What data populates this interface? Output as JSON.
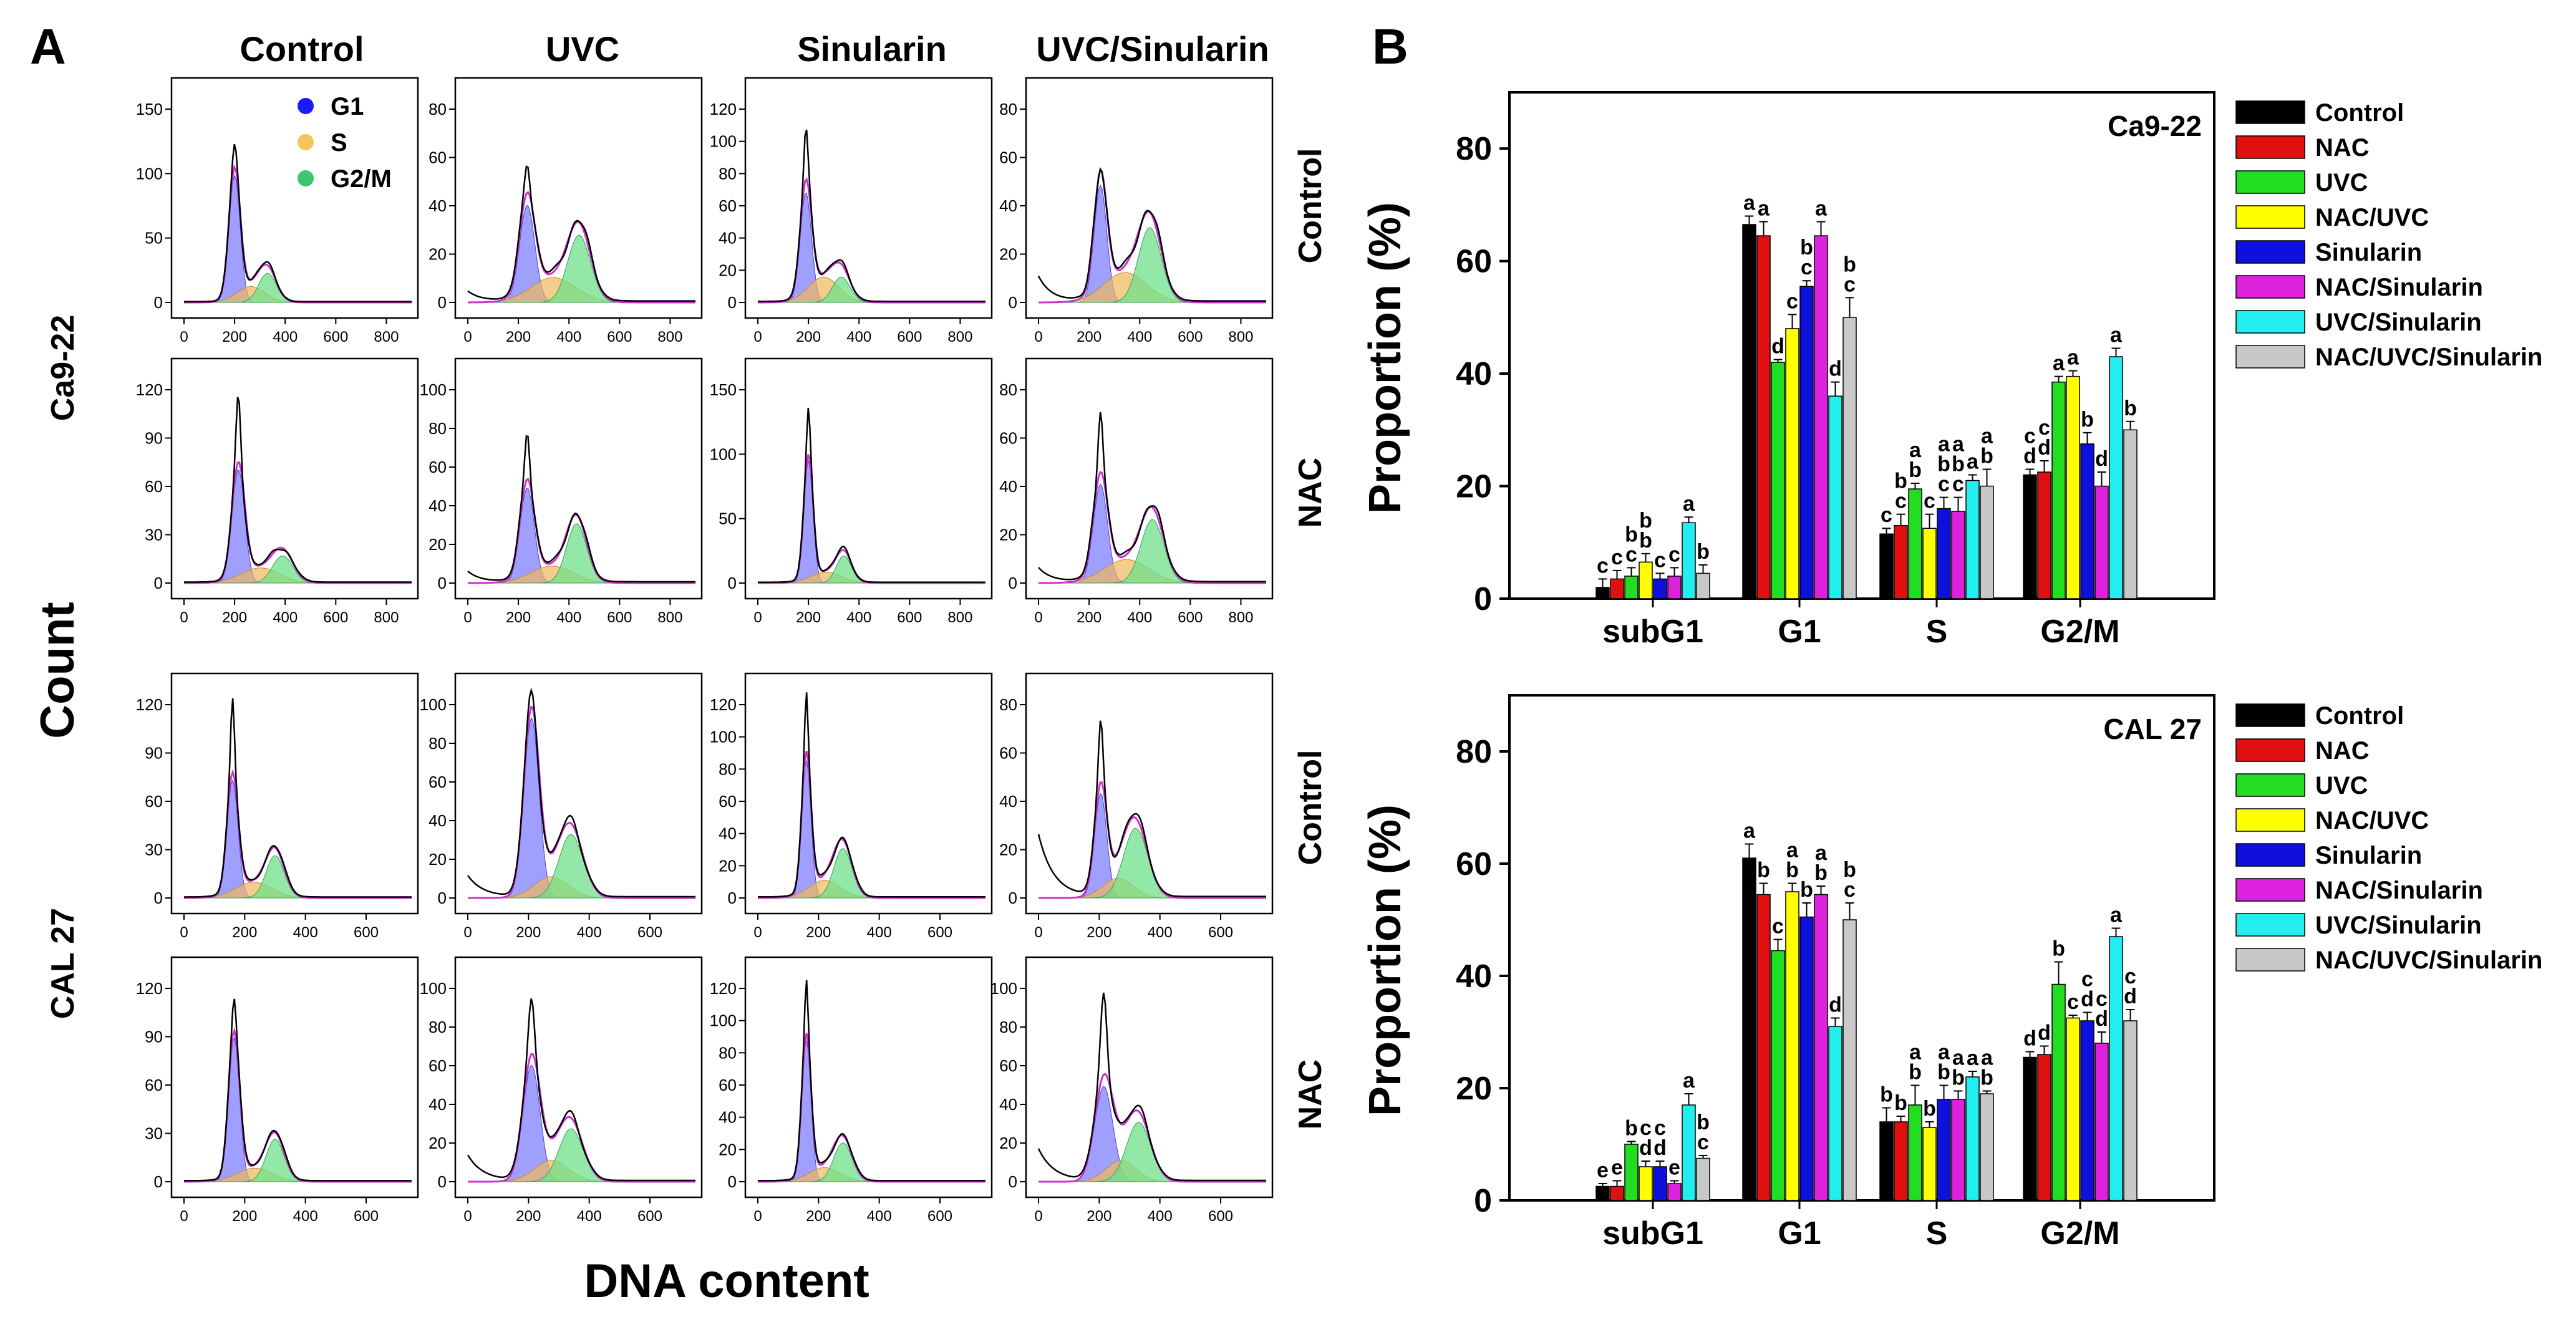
{
  "panel_labels": {
    "a": "A",
    "b": "B"
  },
  "histograms": {
    "column_titles": [
      "Control",
      "UVC",
      "Sinularin",
      "UVC/Sinularin"
    ],
    "row_side_labels": [
      "Control",
      "NAC",
      "Control",
      "NAC"
    ],
    "cell_line_labels": [
      "Ca9-22",
      "CAL 27"
    ],
    "y_title": "Count",
    "x_title": "DNA content",
    "legend": [
      {
        "label": "G1",
        "color": "#1a1aff"
      },
      {
        "label": "S",
        "color": "#f5c45a"
      },
      {
        "label": "G2/M",
        "color": "#3cc870"
      }
    ],
    "colors": {
      "G1": "#7f7fff",
      "S": "#f0b85c",
      "G2M": "#6fe08b",
      "fit": "#cc33cc",
      "raw": "#000000"
    },
    "rows": [
      {
        "x_ticks": [
          "0",
          "200",
          "400",
          "600",
          "800"
        ],
        "x_max": 900,
        "cells": [
          {
            "y_ticks": [
              "0",
              "50",
              "100",
              "150"
            ],
            "y_max": 160,
            "g1": {
              "mu": 200,
              "sd": 22,
              "h": 96
            },
            "g2": {
              "mu": 330,
              "sd": 35,
              "h": 22
            },
            "s_h": 12,
            "debris": 0,
            "peak": 1.1
          },
          {
            "y_ticks": [
              "0",
              "20",
              "40",
              "60",
              "80"
            ],
            "y_max": 85,
            "g1": {
              "mu": 235,
              "sd": 30,
              "h": 39
            },
            "g2": {
              "mu": 440,
              "sd": 45,
              "h": 27
            },
            "s_h": 10,
            "debris": 4,
            "peak": 1.35
          },
          {
            "y_ticks": [
              "0",
              "20",
              "40",
              "60",
              "80",
              "100",
              "120"
            ],
            "y_max": 125,
            "g1": {
              "mu": 190,
              "sd": 22,
              "h": 65
            },
            "g2": {
              "mu": 330,
              "sd": 35,
              "h": 15
            },
            "s_h": 15,
            "debris": 0,
            "peak": 1.4
          },
          {
            "y_ticks": [
              "0",
              "20",
              "40",
              "60",
              "80"
            ],
            "y_max": 85,
            "g1": {
              "mu": 245,
              "sd": 25,
              "h": 47
            },
            "g2": {
              "mu": 440,
              "sd": 45,
              "h": 30
            },
            "s_h": 12,
            "debris": 10,
            "peak": 1.1
          }
        ]
      },
      {
        "x_ticks": [
          "0",
          "200",
          "400",
          "600",
          "800"
        ],
        "x_max": 900,
        "cells": [
          {
            "y_ticks": [
              "0",
              "30",
              "60",
              "90",
              "120"
            ],
            "y_max": 140,
            "g1": {
              "mu": 215,
              "sd": 25,
              "h": 75
            },
            "g2": {
              "mu": 390,
              "sd": 40,
              "h": 18
            },
            "s_h": 10,
            "debris": 0,
            "peak": 1.55
          },
          {
            "y_ticks": [
              "0",
              "20",
              "40",
              "60",
              "80",
              "100"
            ],
            "y_max": 100,
            "g1": {
              "mu": 235,
              "sd": 28,
              "h": 45
            },
            "g2": {
              "mu": 430,
              "sd": 40,
              "h": 28
            },
            "s_h": 8,
            "debris": 5,
            "peak": 1.55
          },
          {
            "y_ticks": [
              "0",
              "50",
              "100",
              "150"
            ],
            "y_max": 155,
            "g1": {
              "mu": 200,
              "sd": 18,
              "h": 90
            },
            "g2": {
              "mu": 340,
              "sd": 30,
              "h": 20
            },
            "s_h": 8,
            "debris": 0,
            "peak": 1.3
          },
          {
            "y_ticks": [
              "0",
              "20",
              "40",
              "60",
              "80"
            ],
            "y_max": 90,
            "g1": {
              "mu": 245,
              "sd": 28,
              "h": 42
            },
            "g2": {
              "mu": 450,
              "sd": 45,
              "h": 27
            },
            "s_h": 10,
            "debris": 6,
            "peak": 1.7
          }
        ]
      },
      {
        "x_ticks": [
          "0",
          "200",
          "400",
          "600"
        ],
        "x_max": 750,
        "cells": [
          {
            "y_ticks": [
              "0",
              "30",
              "60",
              "90",
              "120"
            ],
            "y_max": 135,
            "g1": {
              "mu": 160,
              "sd": 18,
              "h": 75
            },
            "g2": {
              "mu": 300,
              "sd": 30,
              "h": 27
            },
            "s_h": 10,
            "debris": 0,
            "peak": 1.6
          },
          {
            "y_ticks": [
              "0",
              "20",
              "40",
              "60",
              "80",
              "100"
            ],
            "y_max": 100,
            "g1": {
              "mu": 210,
              "sd": 25,
              "h": 85
            },
            "g2": {
              "mu": 340,
              "sd": 40,
              "h": 30
            },
            "s_h": 10,
            "debris": 10,
            "peak": 1.02
          },
          {
            "y_ticks": [
              "0",
              "20",
              "40",
              "60",
              "80",
              "100",
              "120"
            ],
            "y_max": 120,
            "g1": {
              "mu": 160,
              "sd": 15,
              "h": 78
            },
            "g2": {
              "mu": 280,
              "sd": 30,
              "h": 28
            },
            "s_h": 10,
            "debris": 0,
            "peak": 1.4
          },
          {
            "y_ticks": [
              "0",
              "20",
              "40",
              "60",
              "80"
            ],
            "y_max": 85,
            "g1": {
              "mu": 205,
              "sd": 20,
              "h": 42
            },
            "g2": {
              "mu": 320,
              "sd": 40,
              "h": 28
            },
            "s_h": 8,
            "debris": 25,
            "peak": 1.5
          }
        ]
      },
      {
        "x_ticks": [
          "0",
          "200",
          "400",
          "600"
        ],
        "x_max": 750,
        "cells": [
          {
            "y_ticks": [
              "0",
              "30",
              "60",
              "90",
              "120"
            ],
            "y_max": 125,
            "g1": {
              "mu": 165,
              "sd": 18,
              "h": 85
            },
            "g2": {
              "mu": 300,
              "sd": 30,
              "h": 25
            },
            "s_h": 8,
            "debris": 0,
            "peak": 1.2
          },
          {
            "y_ticks": [
              "0",
              "20",
              "40",
              "60",
              "80",
              "100"
            ],
            "y_max": 100,
            "g1": {
              "mu": 210,
              "sd": 28,
              "h": 55
            },
            "g2": {
              "mu": 340,
              "sd": 40,
              "h": 25
            },
            "s_h": 10,
            "debris": 12,
            "peak": 1.4
          },
          {
            "y_ticks": [
              "0",
              "20",
              "40",
              "60",
              "80",
              "100",
              "120"
            ],
            "y_max": 120,
            "g1": {
              "mu": 160,
              "sd": 15,
              "h": 80
            },
            "g2": {
              "mu": 280,
              "sd": 30,
              "h": 22
            },
            "s_h": 8,
            "debris": 0,
            "peak": 1.35
          },
          {
            "y_ticks": [
              "0",
              "20",
              "40",
              "60",
              "80",
              "100"
            ],
            "y_max": 100,
            "g1": {
              "mu": 215,
              "sd": 30,
              "h": 45
            },
            "g2": {
              "mu": 330,
              "sd": 40,
              "h": 28
            },
            "s_h": 10,
            "debris": 15,
            "peak": 1.8
          }
        ]
      }
    ]
  },
  "chart_data": [
    {
      "type": "bar",
      "title": "Ca9-22",
      "ylabel": "Proportion (%)",
      "ylim": [
        0,
        90
      ],
      "y_ticks": [
        0,
        20,
        40,
        60,
        80
      ],
      "categories": [
        "subG1",
        "G1",
        "S",
        "G2/M"
      ],
      "legend_position": "right",
      "series": [
        {
          "name": "Control",
          "color": "#000000",
          "values": [
            2,
            66.5,
            11.5,
            22
          ],
          "errors": [
            1.5,
            1.5,
            1,
            1
          ],
          "letters": [
            "c",
            "a",
            "c",
            "cd"
          ]
        },
        {
          "name": "NAC",
          "color": "#e01010",
          "values": [
            3.5,
            64.5,
            13,
            22.5
          ],
          "errors": [
            1.5,
            2.5,
            2,
            2
          ],
          "letters": [
            "c",
            "a",
            "bc",
            "cd"
          ]
        },
        {
          "name": "UVC",
          "color": "#22dd22",
          "values": [
            4,
            42,
            19.5,
            38.5
          ],
          "errors": [
            1.5,
            0.5,
            1,
            1
          ],
          "letters": [
            "bc",
            "d",
            "ab",
            "a"
          ]
        },
        {
          "name": "NAC/UVC",
          "color": "#ffff00",
          "values": [
            6.5,
            48,
            12.5,
            39.5
          ],
          "errors": [
            1.5,
            2.5,
            2.5,
            1
          ],
          "letters": [
            "bb",
            "c",
            "c",
            "a"
          ]
        },
        {
          "name": "Sinularin",
          "color": "#1010dd",
          "values": [
            3.5,
            55.5,
            16,
            27.5
          ],
          "errors": [
            1,
            1,
            2,
            2
          ],
          "letters": [
            "c",
            "bc",
            "abc",
            "b"
          ]
        },
        {
          "name": "NAC/Sinularin",
          "color": "#dd22dd",
          "values": [
            4,
            64.5,
            15.5,
            20
          ],
          "errors": [
            1.5,
            2.5,
            2.5,
            2.5
          ],
          "letters": [
            "c",
            "a",
            "abc",
            "d"
          ]
        },
        {
          "name": "UVC/Sinularin",
          "color": "#22eeee",
          "values": [
            13.5,
            36,
            21,
            43
          ],
          "errors": [
            1,
            2.5,
            1,
            1.5
          ],
          "letters": [
            "a",
            "d",
            "a",
            "a"
          ]
        },
        {
          "name": "NAC/UVC/Sinularin",
          "color": "#c8c8c8",
          "values": [
            4.5,
            50,
            20,
            30
          ],
          "errors": [
            1.5,
            3.5,
            3,
            1.5
          ],
          "letters": [
            "b",
            "bc",
            "ab",
            "b"
          ]
        }
      ]
    },
    {
      "type": "bar",
      "title": "CAL 27",
      "ylabel": "Proportion (%)",
      "ylim": [
        0,
        90
      ],
      "y_ticks": [
        0,
        20,
        40,
        60,
        80
      ],
      "categories": [
        "subG1",
        "G1",
        "S",
        "G2/M"
      ],
      "legend_position": "right",
      "series": [
        {
          "name": "Control",
          "color": "#000000",
          "values": [
            2.5,
            61,
            14,
            25.5
          ],
          "errors": [
            0.5,
            2.5,
            2.5,
            1
          ],
          "letters": [
            "e",
            "a",
            "b",
            "d"
          ]
        },
        {
          "name": "NAC",
          "color": "#e01010",
          "values": [
            2.5,
            54.5,
            14,
            26
          ],
          "errors": [
            1,
            2,
            1,
            1.5
          ],
          "letters": [
            "e",
            "b",
            "b",
            "d"
          ]
        },
        {
          "name": "UVC",
          "color": "#22dd22",
          "values": [
            10,
            44.5,
            17,
            38.5
          ],
          "errors": [
            0.5,
            2,
            3.5,
            4
          ],
          "letters": [
            "b",
            "c",
            "ab",
            "b"
          ]
        },
        {
          "name": "NAC/UVC",
          "color": "#ffff00",
          "values": [
            6,
            55,
            13,
            32.5
          ],
          "errors": [
            1,
            1.5,
            1,
            0.5
          ],
          "letters": [
            "cd",
            "ab",
            "b",
            "c"
          ]
        },
        {
          "name": "Sinularin",
          "color": "#1010dd",
          "values": [
            6,
            50.5,
            18,
            32
          ],
          "errors": [
            1,
            2.5,
            2.5,
            1.5
          ],
          "letters": [
            "cd",
            "b",
            "ab",
            "cd"
          ]
        },
        {
          "name": "NAC/Sinularin",
          "color": "#dd22dd",
          "values": [
            3,
            54.5,
            18,
            28
          ],
          "errors": [
            0.5,
            1.5,
            1.5,
            2
          ],
          "letters": [
            "e",
            "ab",
            "ab",
            "cd"
          ]
        },
        {
          "name": "UVC/Sinularin",
          "color": "#22eeee",
          "values": [
            17,
            31,
            22,
            47
          ],
          "errors": [
            2,
            1.5,
            1,
            1.5
          ],
          "letters": [
            "a",
            "d",
            "a",
            "a"
          ]
        },
        {
          "name": "NAC/UVC/Sinularin",
          "color": "#c8c8c8",
          "values": [
            7.5,
            50,
            19,
            32
          ],
          "errors": [
            0.5,
            3,
            0.5,
            2
          ],
          "letters": [
            "bc",
            "bc",
            "ab",
            "cd"
          ]
        }
      ]
    }
  ]
}
